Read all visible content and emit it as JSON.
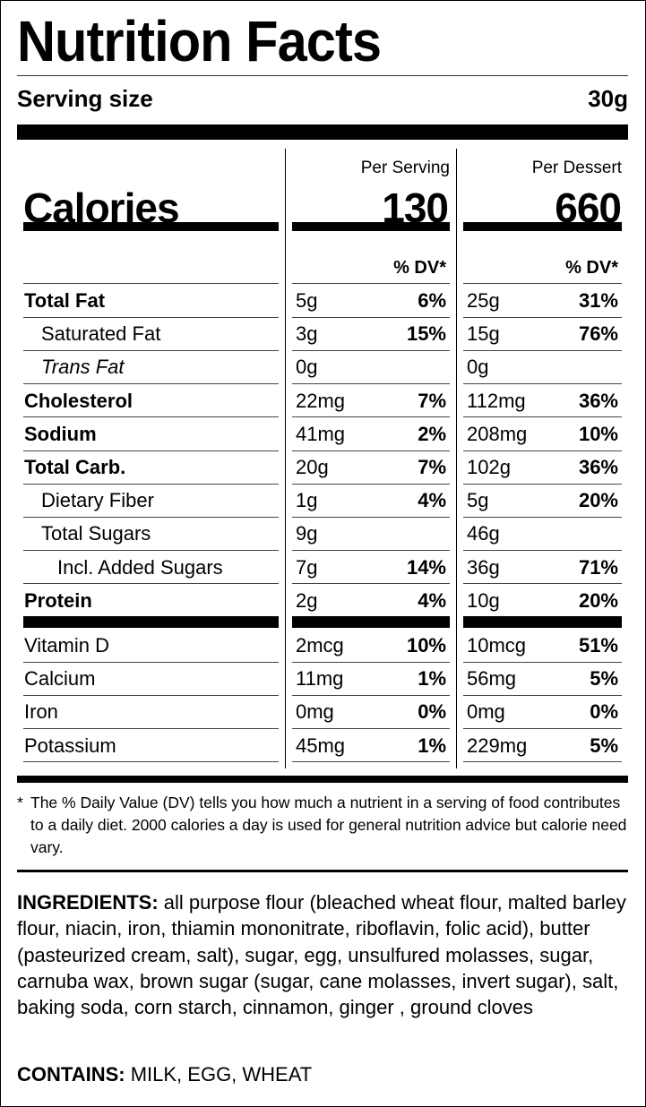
{
  "label": {
    "title": "Nutrition Facts",
    "serving_size_label": "Serving size",
    "serving_size_value": "30g",
    "columns": {
      "per_serving_header": "Per Serving",
      "per_dessert_header": "Per Dessert",
      "dv_header": "% DV*"
    },
    "calories": {
      "label": "Calories",
      "per_serving": "130",
      "per_dessert": "660"
    },
    "nutrients": [
      {
        "name": "Total Fat",
        "style": "bold",
        "indent": 0,
        "serving_amount": "5g",
        "serving_dv": "6%",
        "dessert_amount": "25g",
        "dessert_dv": "31%"
      },
      {
        "name": "Saturated Fat",
        "style": "normal",
        "indent": 1,
        "serving_amount": "3g",
        "serving_dv": "15%",
        "dessert_amount": "15g",
        "dessert_dv": "76%"
      },
      {
        "name": "Trans Fat",
        "style": "italic",
        "indent": 1,
        "serving_amount": "0g",
        "serving_dv": "",
        "dessert_amount": "0g",
        "dessert_dv": ""
      },
      {
        "name": "Cholesterol",
        "style": "bold",
        "indent": 0,
        "serving_amount": "22mg",
        "serving_dv": "7%",
        "dessert_amount": "112mg",
        "dessert_dv": "36%"
      },
      {
        "name": "Sodium",
        "style": "bold",
        "indent": 0,
        "serving_amount": "41mg",
        "serving_dv": "2%",
        "dessert_amount": "208mg",
        "dessert_dv": "10%"
      },
      {
        "name": "Total Carb.",
        "style": "bold",
        "indent": 0,
        "serving_amount": "20g",
        "serving_dv": "7%",
        "dessert_amount": "102g",
        "dessert_dv": "36%"
      },
      {
        "name": "Dietary Fiber",
        "style": "normal",
        "indent": 1,
        "serving_amount": "1g",
        "serving_dv": "4%",
        "dessert_amount": "5g",
        "dessert_dv": "20%"
      },
      {
        "name": "Total Sugars",
        "style": "normal",
        "indent": 1,
        "serving_amount": "9g",
        "serving_dv": "",
        "dessert_amount": "46g",
        "dessert_dv": ""
      },
      {
        "name": "Incl. Added Sugars",
        "style": "normal",
        "indent": 2,
        "serving_amount": "7g",
        "serving_dv": "14%",
        "dessert_amount": "36g",
        "dessert_dv": "71%"
      },
      {
        "name": "Protein",
        "style": "bold",
        "indent": 0,
        "serving_amount": "2g",
        "serving_dv": "4%",
        "dessert_amount": "10g",
        "dessert_dv": "20%"
      }
    ],
    "vitamins": [
      {
        "name": "Vitamin D",
        "serving_amount": "2mcg",
        "serving_dv": "10%",
        "dessert_amount": "10mcg",
        "dessert_dv": "51%"
      },
      {
        "name": "Calcium",
        "serving_amount": "11mg",
        "serving_dv": "1%",
        "dessert_amount": "56mg",
        "dessert_dv": "5%"
      },
      {
        "name": "Iron",
        "serving_amount": "0mg",
        "serving_dv": "0%",
        "dessert_amount": "0mg",
        "dessert_dv": "0%"
      },
      {
        "name": "Potassium",
        "serving_amount": "45mg",
        "serving_dv": "1%",
        "dessert_amount": "229mg",
        "dessert_dv": "5%"
      }
    ],
    "footnote": {
      "star": "*",
      "text": "The % Daily Value (DV) tells you how much a nutrient in a serving of food contributes to a daily diet. 2000 calories a day is used for general nutrition advice but calorie need vary."
    },
    "ingredients": {
      "label": "INGREDIENTS:",
      "text": " all purpose flour (bleached wheat flour, malted barley flour, niacin, iron, thiamin mononitrate, riboflavin, folic acid), butter (pasteurized cream, salt), sugar, egg, unsulfured molasses, sugar, carnuba wax, brown sugar (sugar, cane molasses, invert sugar), salt, baking soda, corn starch, cinnamon, ginger , ground cloves"
    },
    "contains": {
      "label": "CONTAINS:",
      "text": " MILK, EGG, WHEAT"
    }
  }
}
